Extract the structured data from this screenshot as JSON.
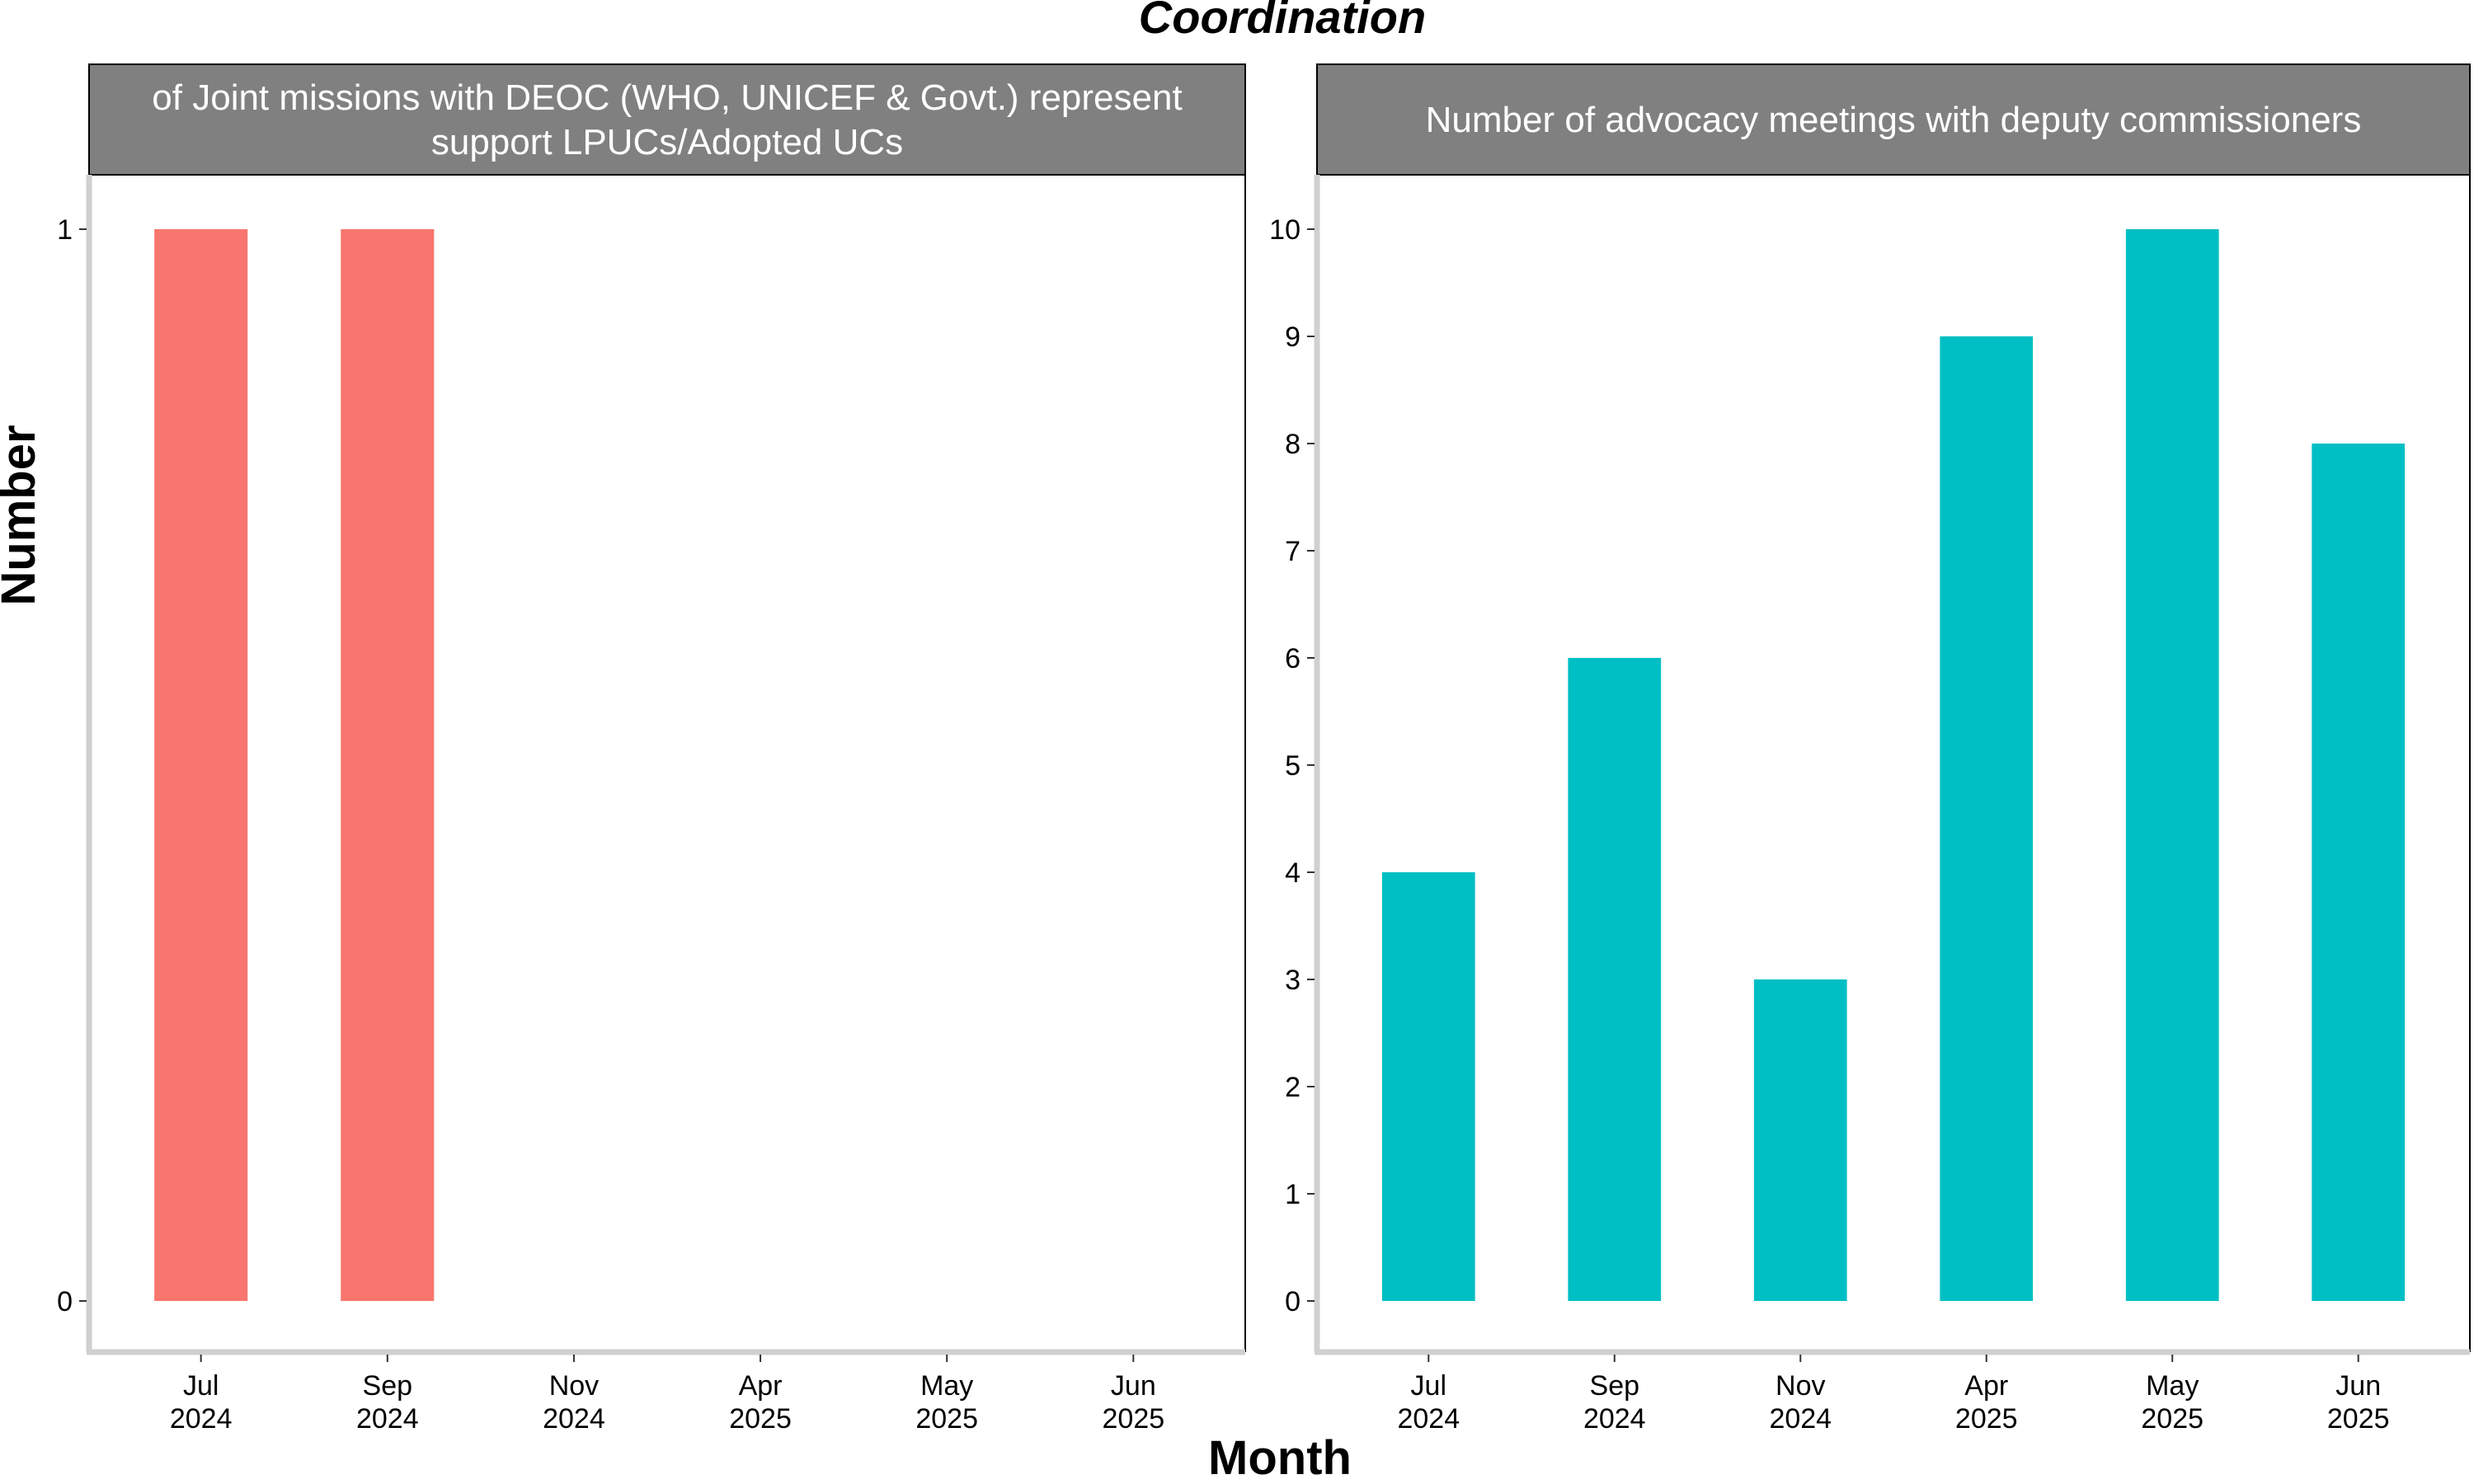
{
  "title": "Coordination",
  "xlabel": "Month",
  "ylabel": "Number",
  "colors": {
    "strip_bg": "#808080",
    "strip_text": "#ffffff",
    "axis_line": "#d0d0d0",
    "tick_mark": "#333333"
  },
  "chart_data": [
    {
      "type": "bar",
      "panel_title_lines": [
        "of Joint missions with DEOC (WHO, UNICEF & Govt.) represent",
        "support LPUCs/Adopted UCs"
      ],
      "categories": [
        "Jul\n2024",
        "Sep\n2024",
        "Nov\n2024",
        "Apr\n2025",
        "May\n2025",
        "Jun\n2025"
      ],
      "values": [
        1,
        1,
        0,
        0,
        0,
        0
      ],
      "ylim": [
        0,
        1
      ],
      "yticks": [
        0,
        1
      ],
      "color": "#F8766D"
    },
    {
      "type": "bar",
      "panel_title_lines": [
        "Number of advocacy meetings with deputy commissioners"
      ],
      "categories": [
        "Jul\n2024",
        "Sep\n2024",
        "Nov\n2024",
        "Apr\n2025",
        "May\n2025",
        "Jun\n2025"
      ],
      "values": [
        4,
        6,
        3,
        9,
        10,
        8
      ],
      "ylim": [
        0,
        10
      ],
      "yticks": [
        0,
        1,
        2,
        3,
        4,
        5,
        6,
        7,
        8,
        9,
        10
      ],
      "color": "#00BFC4"
    }
  ]
}
